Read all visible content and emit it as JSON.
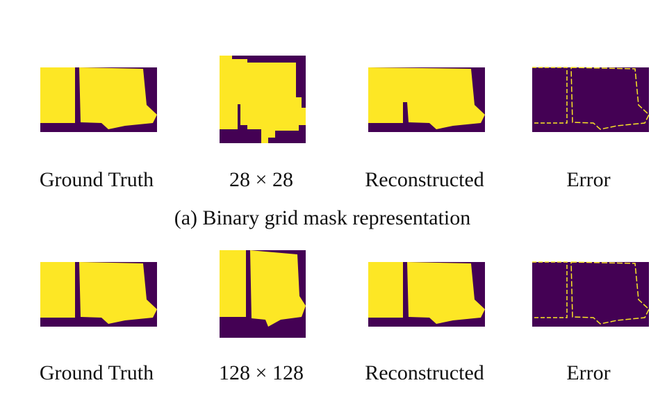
{
  "rows": [
    {
      "labels": [
        "Ground Truth",
        "28 × 28",
        "Reconstructed",
        "Error"
      ],
      "caption": "(a) Binary grid mask representation"
    },
    {
      "labels": [
        "Ground Truth",
        "128 × 128",
        "Reconstructed",
        "Error"
      ]
    }
  ]
}
